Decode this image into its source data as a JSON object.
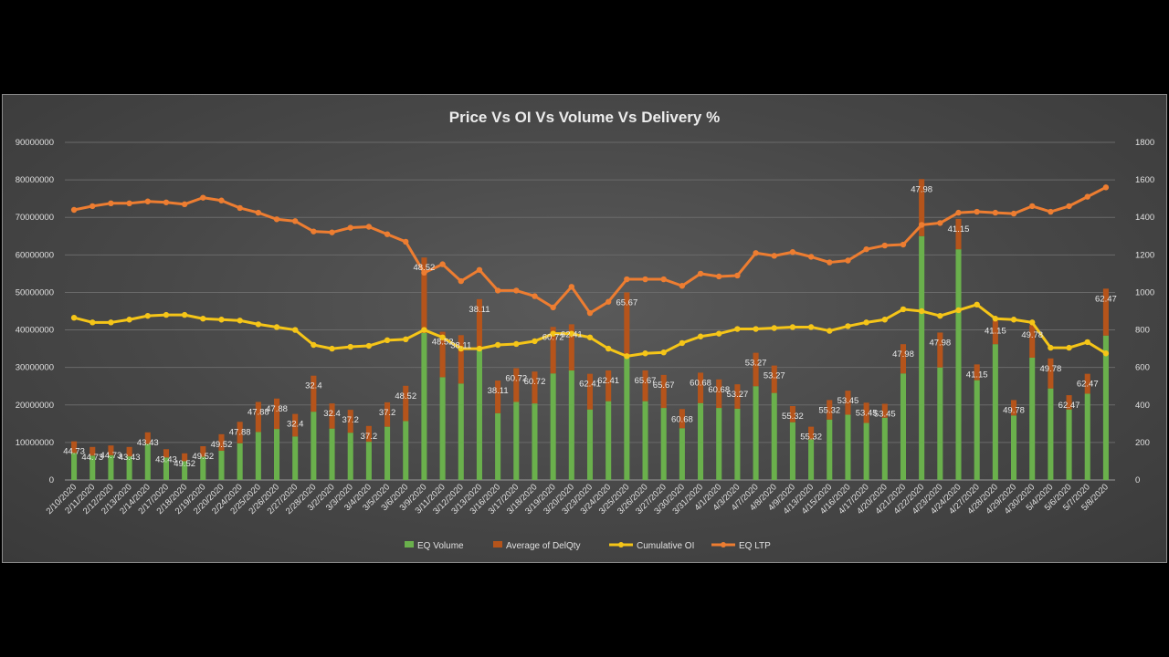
{
  "chart_data": {
    "type": "bar",
    "title": "Price Vs OI Vs Volume Vs Delivery %",
    "categories": [
      "2/10/2020",
      "2/11/2020",
      "2/12/2020",
      "2/13/2020",
      "2/14/2020",
      "2/17/2020",
      "2/18/2020",
      "2/19/2020",
      "2/20/2020",
      "2/24/2020",
      "2/25/2020",
      "2/26/2020",
      "2/27/2020",
      "2/28/2020",
      "3/2/2020",
      "3/3/2020",
      "3/4/2020",
      "3/5/2020",
      "3/6/2020",
      "3/9/2020",
      "3/11/2020",
      "3/12/2020",
      "3/13/2020",
      "3/16/2020",
      "3/17/2020",
      "3/18/2020",
      "3/19/2020",
      "3/20/2020",
      "3/23/2020",
      "3/24/2020",
      "3/25/2020",
      "3/26/2020",
      "3/27/2020",
      "3/30/2020",
      "3/31/2020",
      "4/1/2020",
      "4/3/2020",
      "4/7/2020",
      "4/8/2020",
      "4/9/2020",
      "4/13/2020",
      "4/15/2020",
      "4/16/2020",
      "4/17/2020",
      "4/20/2020",
      "4/21/2020",
      "4/22/2020",
      "4/23/2020",
      "4/24/2020",
      "4/27/2020",
      "4/28/2020",
      "4/29/2020",
      "4/30/2020",
      "5/4/2020",
      "5/6/2020",
      "5/7/2020",
      "5/8/2020"
    ],
    "ylim": [
      0,
      90000000
    ],
    "y2lim": [
      0,
      1800
    ],
    "yticks": [
      "0",
      "10000000",
      "20000000",
      "30000000",
      "40000000",
      "50000000",
      "60000000",
      "70000000",
      "80000000",
      "90000000"
    ],
    "y2ticks": [
      "0",
      "200",
      "400",
      "600",
      "800",
      "1000",
      "1200",
      "1400",
      "1600",
      "1800"
    ],
    "series": [
      {
        "name": "EQ Volume",
        "type": "bar",
        "axis": "left",
        "color": "#6ab04c",
        "values": [
          7200000,
          6500000,
          6600000,
          6300000,
          9600000,
          6000000,
          5000000,
          6200000,
          7800000,
          9800000,
          12800000,
          13600000,
          11600000,
          18200000,
          13700000,
          12600000,
          10200000,
          14200000,
          15700000,
          39200000,
          27400000,
          25700000,
          35000000,
          17800000,
          20800000,
          20400000,
          28400000,
          29200000,
          18800000,
          21000000,
          32800000,
          21000000,
          19200000,
          13800000,
          20500000,
          19200000,
          19000000,
          25000000,
          23200000,
          15400000,
          10800000,
          16100000,
          17400000,
          15200000,
          16600000,
          28400000,
          65000000,
          30000000,
          61500000,
          26600000,
          36200000,
          17200000,
          32600000,
          24400000,
          18800000,
          23000000,
          38500000
        ]
      },
      {
        "name": "Average of DelQty",
        "type": "bar",
        "axis": "left",
        "color": "#b5541b",
        "values": [
          3100000,
          2300000,
          2600000,
          2500000,
          3100000,
          2200000,
          2100000,
          2800000,
          4400000,
          5700000,
          8000000,
          8100000,
          6000000,
          9600000,
          6700000,
          6100000,
          4200000,
          6500000,
          9400000,
          20100000,
          12100000,
          12900000,
          13200000,
          8700000,
          9000000,
          8500000,
          12400000,
          12300000,
          9500000,
          8200000,
          17200000,
          8200000,
          8800000,
          5100000,
          8100000,
          7600000,
          6500000,
          8900000,
          7300000,
          4300000,
          3400000,
          5200000,
          6400000,
          5400000,
          3700000,
          7800000,
          15200000,
          9300000,
          8100000,
          4200000,
          6200000,
          4100000,
          8700000,
          8000000,
          3800000,
          5300000,
          12500000
        ]
      },
      {
        "name": "Cumulative OI",
        "type": "line",
        "axis": "right",
        "color": "#f5c518",
        "values": [
          865,
          840,
          840,
          855,
          875,
          880,
          880,
          860,
          855,
          850,
          830,
          815,
          800,
          720,
          700,
          710,
          715,
          745,
          750,
          800,
          760,
          700,
          700,
          720,
          725,
          740,
          780,
          780,
          760,
          700,
          660,
          675,
          680,
          730,
          765,
          780,
          805,
          805,
          810,
          815,
          815,
          795,
          820,
          840,
          855,
          910,
          900,
          875,
          905,
          935,
          860,
          855,
          840,
          705,
          705,
          735,
          675
        ]
      },
      {
        "name": "EQ LTP",
        "type": "line",
        "axis": "right",
        "color": "#ed7d31",
        "values": [
          1440,
          1460,
          1475,
          1475,
          1485,
          1480,
          1470,
          1505,
          1490,
          1450,
          1425,
          1390,
          1380,
          1325,
          1320,
          1345,
          1350,
          1310,
          1270,
          1105,
          1150,
          1060,
          1120,
          1010,
          1010,
          980,
          920,
          1030,
          890,
          950,
          1070,
          1070,
          1070,
          1035,
          1100,
          1085,
          1090,
          1210,
          1195,
          1215,
          1190,
          1160,
          1170,
          1230,
          1250,
          1255,
          1360,
          1370,
          1425,
          1430,
          1425,
          1420,
          1460,
          1430,
          1460,
          1510,
          1560
        ]
      }
    ],
    "data_labels": [
      "44.73",
      "44.73",
      "44.73",
      "43.43",
      "43.43",
      "43.43",
      "49.52",
      "49.52",
      "49.52",
      "47.88",
      "47.88",
      "47.88",
      "32.4",
      "32.4",
      "32.4",
      "37.2",
      "37.2",
      "37.2",
      "48.52",
      "48.52",
      "48.52",
      "38.11",
      "38.11",
      "38.11",
      "60.72",
      "60.72",
      "60.72",
      "62.41",
      "62.41",
      "62.41",
      "65.67",
      "65.67",
      "65.67",
      "60.68",
      "60.68",
      "60.68",
      "53.27",
      "53.27",
      "53.27",
      "55.32",
      "55.32",
      "55.32",
      "53.45",
      "53.45",
      "53.45",
      "47.98",
      "47.98",
      "47.98",
      "41.15",
      "41.15",
      "41.15",
      "49.78",
      "49.78",
      "49.78",
      "62.47",
      "62.47",
      "62.47"
    ],
    "legend": {
      "position": "bottom",
      "entries": [
        "EQ Volume",
        "Average of DelQty",
        "Cumulative OI",
        "EQ LTP"
      ]
    }
  }
}
